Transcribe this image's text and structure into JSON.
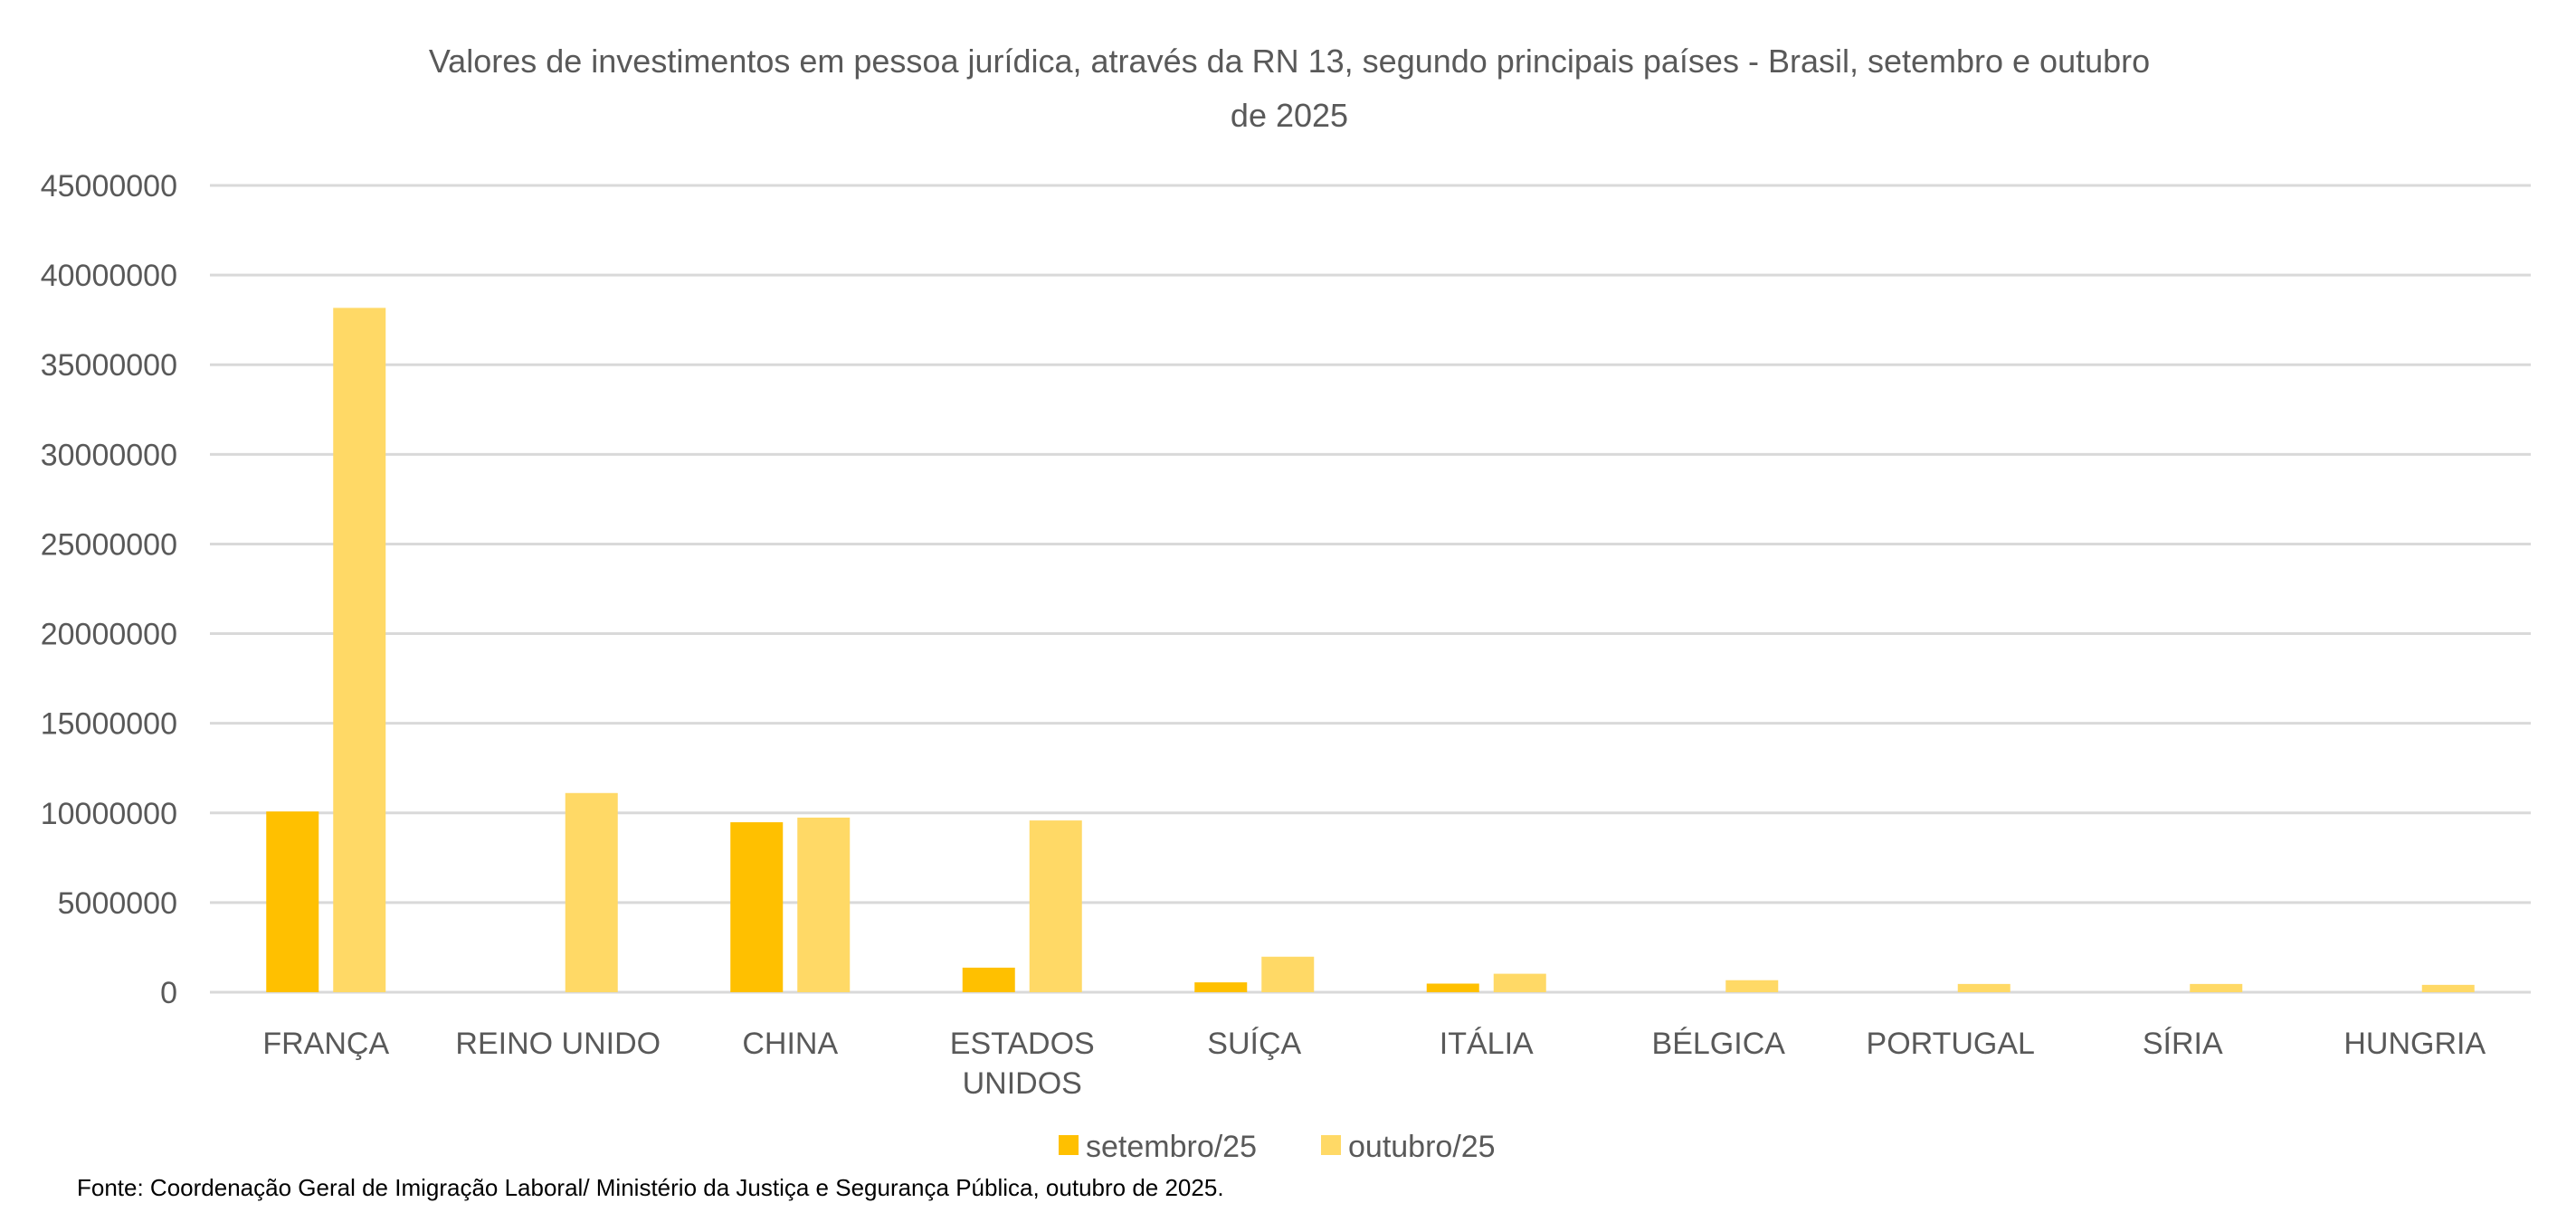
{
  "chart_data": {
    "type": "bar",
    "title_line1": "Valores de investimentos em pessoa jurídica, através da RN 13, segundo principais países - Brasil,  setembro e outubro",
    "title_line2": "de 2025",
    "categories": [
      "FRANÇA",
      "REINO UNIDO",
      "CHINA",
      "ESTADOS UNIDOS",
      "SUÍÇA",
      "ITÁLIA",
      "BÉLGICA",
      "PORTUGAL",
      "SÍRIA",
      "HUNGRIA"
    ],
    "series": [
      {
        "name": "setembro/25",
        "color": "#FFC000",
        "values": [
          10080000,
          0,
          9480000,
          1370000,
          550000,
          480000,
          0,
          0,
          0,
          0
        ]
      },
      {
        "name": "outubro/25",
        "color": "#FFD966",
        "values": [
          38170000,
          11110000,
          9740000,
          9580000,
          1980000,
          1030000,
          670000,
          460000,
          460000,
          410000
        ]
      }
    ],
    "ylim": [
      0,
      45000000
    ],
    "yticks": [
      "0",
      "5000000",
      "10000000",
      "15000000",
      "20000000",
      "25000000",
      "30000000",
      "35000000",
      "40000000",
      "45000000"
    ],
    "grid": true,
    "legend_position": "bottom",
    "gridline_color": "#D9D9D9"
  },
  "source": "Fonte: Coordenação Geral de Imigração Laboral/ Ministério da Justiça e Segurança Pública, outubro de 2025."
}
